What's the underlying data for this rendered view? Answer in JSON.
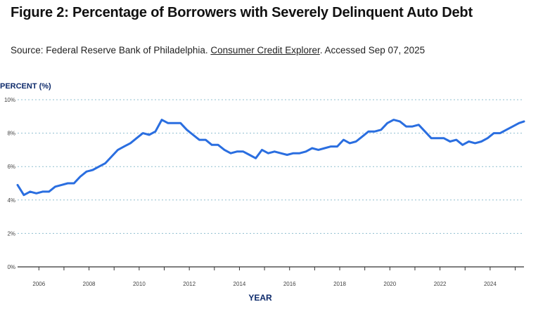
{
  "header": {
    "title": "Figure 2: Percentage of Borrowers with Severely Delinquent Auto Debt",
    "source_prefix": "Source: Federal Reserve Bank of Philadelphia. ",
    "source_link": "Consumer Credit Explorer",
    "source_suffix": ". Accessed Sep 07, 2025"
  },
  "colors": {
    "line": "#2a6ee0",
    "grid": "#8fbfcf",
    "axis_label": "#0d2a6b"
  },
  "chart_data": {
    "type": "line",
    "title": "Figure 2: Percentage of Borrowers with Severely Delinquent Auto Debt",
    "xlabel": "YEAR",
    "ylabel": "PERCENT (%)",
    "xlim": [
      2005.15,
      2025.35
    ],
    "ylim": [
      0,
      10
    ],
    "grid": true,
    "y_ticks": [
      0,
      2,
      4,
      6,
      8,
      10
    ],
    "y_tick_labels": [
      "0%",
      "2%",
      "4%",
      "6%",
      "8%",
      "10%"
    ],
    "x_ticks": [
      2006,
      2008,
      2010,
      2012,
      2014,
      2016,
      2018,
      2020,
      2022,
      2024
    ],
    "x_tick_labels": [
      "2006",
      "2008",
      "2010",
      "2012",
      "2014",
      "2016",
      "2018",
      "2020",
      "2022",
      "2024"
    ],
    "series": [
      {
        "name": "Severely delinquent auto debt",
        "x": [
          2005.15,
          2005.4,
          2005.65,
          2005.9,
          2006.15,
          2006.4,
          2006.65,
          2006.9,
          2007.15,
          2007.4,
          2007.65,
          2007.9,
          2008.15,
          2008.4,
          2008.65,
          2008.9,
          2009.15,
          2009.4,
          2009.65,
          2009.9,
          2010.15,
          2010.4,
          2010.65,
          2010.9,
          2011.15,
          2011.4,
          2011.65,
          2011.9,
          2012.15,
          2012.4,
          2012.65,
          2012.9,
          2013.15,
          2013.4,
          2013.65,
          2013.9,
          2014.15,
          2014.4,
          2014.65,
          2014.9,
          2015.15,
          2015.4,
          2015.65,
          2015.9,
          2016.15,
          2016.4,
          2016.65,
          2016.9,
          2017.15,
          2017.4,
          2017.65,
          2017.9,
          2018.15,
          2018.4,
          2018.65,
          2018.9,
          2019.15,
          2019.4,
          2019.65,
          2019.9,
          2020.15,
          2020.4,
          2020.65,
          2020.9,
          2021.15,
          2021.4,
          2021.65,
          2021.9,
          2022.15,
          2022.4,
          2022.65,
          2022.9,
          2023.15,
          2023.4,
          2023.65,
          2023.9,
          2024.15,
          2024.4,
          2024.65,
          2024.9,
          2025.15,
          2025.35
        ],
        "values": [
          4.9,
          4.3,
          4.5,
          4.4,
          4.5,
          4.5,
          4.8,
          4.9,
          5.0,
          5.0,
          5.4,
          5.7,
          5.8,
          6.0,
          6.2,
          6.6,
          7.0,
          7.2,
          7.4,
          7.7,
          8.0,
          7.9,
          8.1,
          8.8,
          8.6,
          8.6,
          8.6,
          8.2,
          7.9,
          7.6,
          7.6,
          7.3,
          7.3,
          7.0,
          6.8,
          6.9,
          6.9,
          6.7,
          6.5,
          7.0,
          6.8,
          6.9,
          6.8,
          6.7,
          6.8,
          6.8,
          6.9,
          7.1,
          7.0,
          7.1,
          7.2,
          7.2,
          7.6,
          7.4,
          7.5,
          7.8,
          8.1,
          8.1,
          8.2,
          8.6,
          8.8,
          8.7,
          8.4,
          8.4,
          8.5,
          8.1,
          7.7,
          7.7,
          7.7,
          7.5,
          7.6,
          7.3,
          7.5,
          7.4,
          7.5,
          7.7,
          8.0,
          8.0,
          8.2,
          8.4,
          8.6,
          8.7
        ]
      }
    ]
  }
}
